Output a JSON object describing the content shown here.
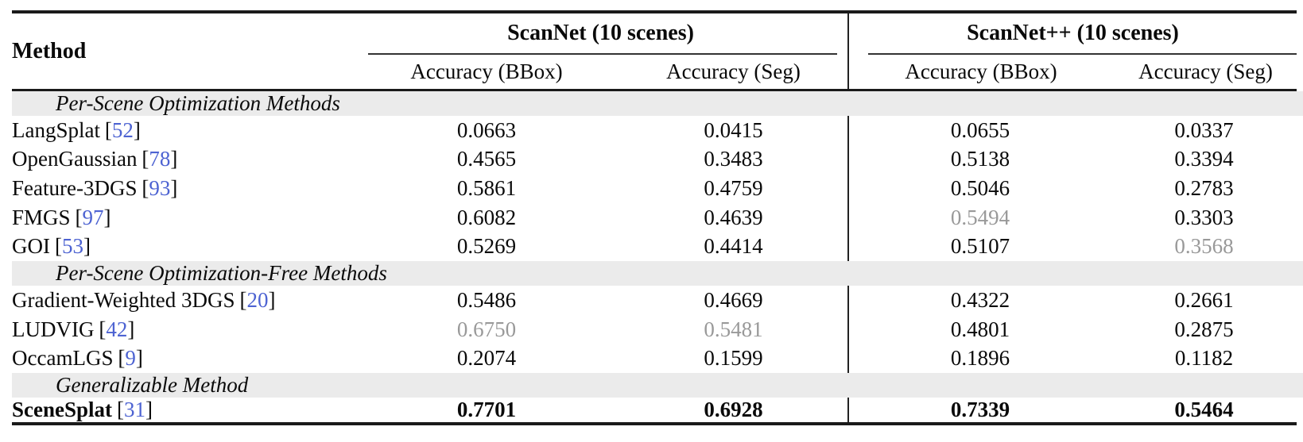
{
  "punct": {
    "open": "[",
    "close": "]"
  },
  "colors": {
    "citation_blue": "#4d63d2",
    "second_best_gray": "#999999",
    "section_band_gray": "#ebebeb",
    "rule_black": "#1a1a1a"
  },
  "header": {
    "method_label": "Method",
    "groups": [
      {
        "title": "ScanNet (10 scenes)",
        "subcolumns": [
          "Accuracy (BBox)",
          "Accuracy (Seg)"
        ]
      },
      {
        "title": "ScanNet++ (10 scenes)",
        "subcolumns": [
          "Accuracy (BBox)",
          "Accuracy (Seg)"
        ]
      }
    ]
  },
  "sections": [
    {
      "label": "Per-Scene Optimization Methods",
      "rows": [
        {
          "method": "LangSplat",
          "cite": "52",
          "row_style": "",
          "values": [
            {
              "text": "0.0663",
              "style": ""
            },
            {
              "text": "0.0415",
              "style": ""
            },
            {
              "text": "0.0655",
              "style": ""
            },
            {
              "text": "0.0337",
              "style": ""
            }
          ]
        },
        {
          "method": "OpenGaussian",
          "cite": "78",
          "row_style": "",
          "values": [
            {
              "text": "0.4565",
              "style": ""
            },
            {
              "text": "0.3483",
              "style": ""
            },
            {
              "text": "0.5138",
              "style": ""
            },
            {
              "text": "0.3394",
              "style": ""
            }
          ]
        },
        {
          "method": "Feature-3DGS",
          "cite": "93",
          "row_style": "",
          "values": [
            {
              "text": "0.5861",
              "style": ""
            },
            {
              "text": "0.4759",
              "style": ""
            },
            {
              "text": "0.5046",
              "style": ""
            },
            {
              "text": "0.2783",
              "style": ""
            }
          ]
        },
        {
          "method": "FMGS",
          "cite": "97",
          "row_style": "",
          "values": [
            {
              "text": "0.6082",
              "style": ""
            },
            {
              "text": "0.4639",
              "style": ""
            },
            {
              "text": "0.5494",
              "style": "second"
            },
            {
              "text": "0.3303",
              "style": ""
            }
          ]
        },
        {
          "method": "GOI",
          "cite": "53",
          "row_style": "",
          "values": [
            {
              "text": "0.5269",
              "style": ""
            },
            {
              "text": "0.4414",
              "style": ""
            },
            {
              "text": "0.5107",
              "style": ""
            },
            {
              "text": "0.3568",
              "style": "second"
            }
          ]
        }
      ]
    },
    {
      "label": "Per-Scene Optimization-Free Methods",
      "rows": [
        {
          "method": "Gradient-Weighted 3DGS",
          "cite": "20",
          "row_style": "",
          "values": [
            {
              "text": "0.5486",
              "style": ""
            },
            {
              "text": "0.4669",
              "style": ""
            },
            {
              "text": "0.4322",
              "style": ""
            },
            {
              "text": "0.2661",
              "style": ""
            }
          ]
        },
        {
          "method": "LUDVIG",
          "cite": "42",
          "row_style": "",
          "values": [
            {
              "text": "0.6750",
              "style": "second"
            },
            {
              "text": "0.5481",
              "style": "second"
            },
            {
              "text": "0.4801",
              "style": ""
            },
            {
              "text": "0.2875",
              "style": ""
            }
          ]
        },
        {
          "method": "OccamLGS",
          "cite": "9",
          "row_style": "",
          "values": [
            {
              "text": "0.2074",
              "style": ""
            },
            {
              "text": "0.1599",
              "style": ""
            },
            {
              "text": "0.1896",
              "style": ""
            },
            {
              "text": "0.1182",
              "style": ""
            }
          ]
        }
      ]
    },
    {
      "label": "Generalizable Method",
      "rows": [
        {
          "method": "SceneSplat",
          "cite": "31",
          "row_style": "best",
          "values": [
            {
              "text": "0.7701",
              "style": "best"
            },
            {
              "text": "0.6928",
              "style": "best"
            },
            {
              "text": "0.7339",
              "style": "best"
            },
            {
              "text": "0.5464",
              "style": "best"
            }
          ]
        }
      ]
    }
  ]
}
